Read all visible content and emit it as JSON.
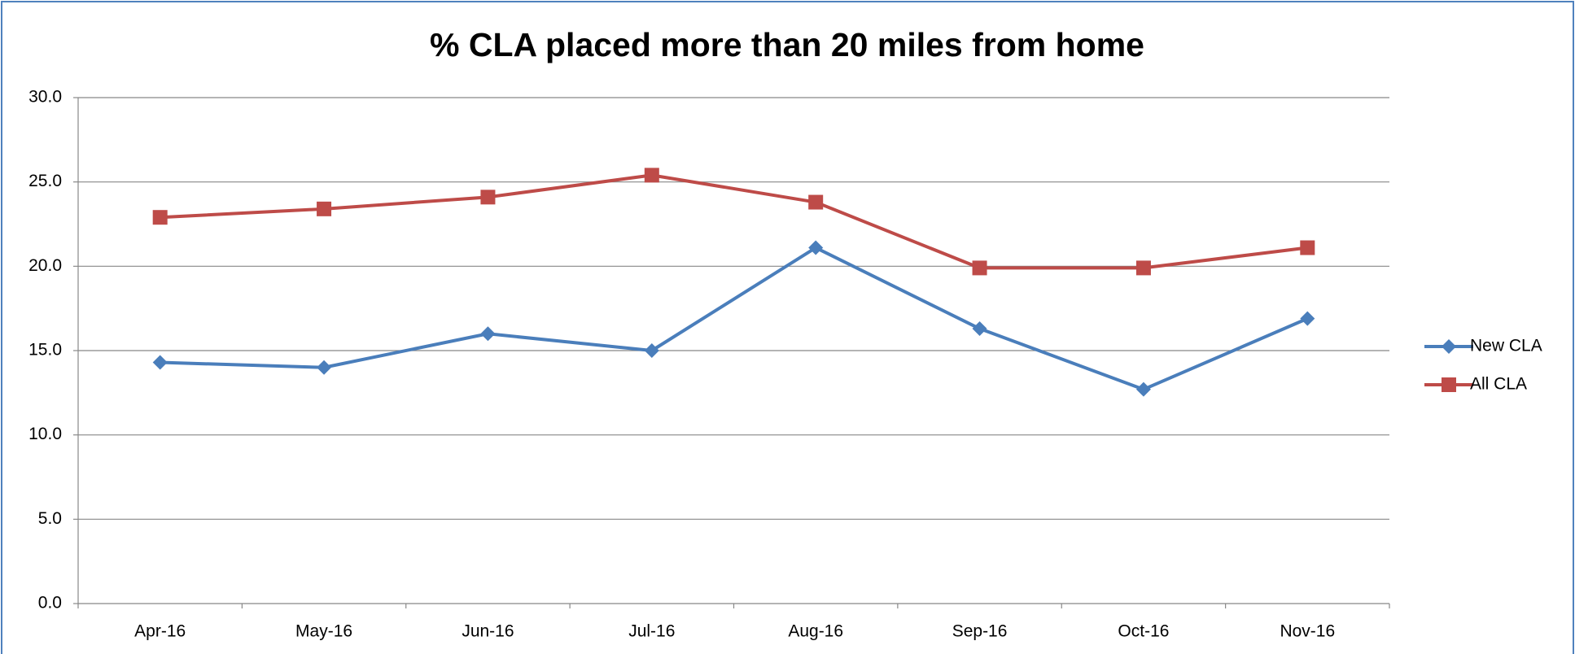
{
  "chart_data": {
    "type": "line",
    "title": "% CLA placed more than 20 miles from home",
    "categories": [
      "Apr-16",
      "May-16",
      "Jun-16",
      "Jul-16",
      "Aug-16",
      "Sep-16",
      "Oct-16",
      "Nov-16"
    ],
    "series": [
      {
        "name": "New CLA",
        "color": "#4a7ebb",
        "marker": "diamond",
        "values": [
          14.3,
          14.0,
          16.0,
          15.0,
          21.1,
          16.3,
          12.7,
          16.9
        ]
      },
      {
        "name": "All CLA",
        "color": "#be4b48",
        "marker": "square",
        "values": [
          22.9,
          23.4,
          24.1,
          25.4,
          23.8,
          19.9,
          19.9,
          21.1
        ]
      }
    ],
    "ylim": [
      0,
      30
    ],
    "yticks": [
      {
        "value": 0,
        "label": "0.0"
      },
      {
        "value": 5,
        "label": "5.0"
      },
      {
        "value": 10,
        "label": "10.0"
      },
      {
        "value": 15,
        "label": "15.0"
      },
      {
        "value": 20,
        "label": "20.0"
      },
      {
        "value": 25,
        "label": "25.0"
      },
      {
        "value": 30,
        "label": "30.0"
      }
    ],
    "grid": true,
    "legend": "right"
  }
}
